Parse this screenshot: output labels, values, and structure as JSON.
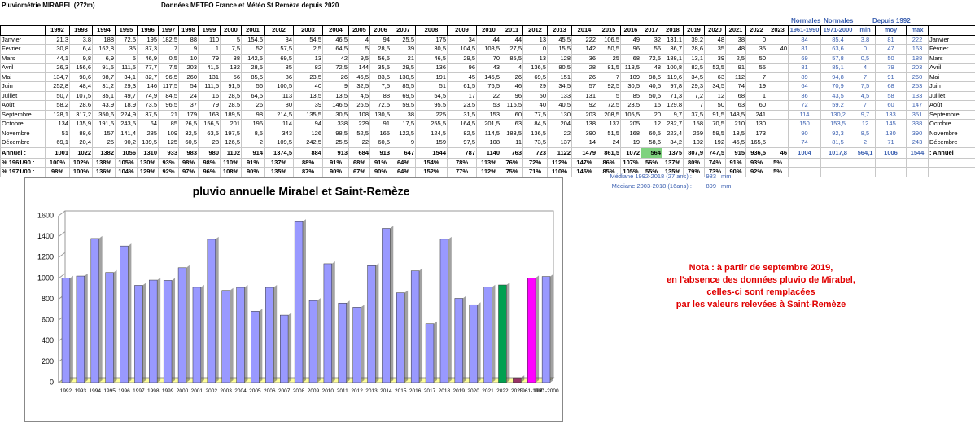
{
  "header": {
    "title": "Pluviométrie   MIRABEL (272m)",
    "source": "Données METEO France et Météo St Remèze depuis 2020"
  },
  "table": {
    "years": [
      "1992",
      "1993",
      "1994",
      "1995",
      "1996",
      "1997",
      "1998",
      "1999",
      "2000",
      "2001",
      "2002",
      "2003",
      "2004",
      "2005",
      "2006",
      "2007",
      "2008",
      "2009",
      "2010",
      "2011",
      "2012",
      "2013",
      "2014",
      "2015",
      "2016",
      "2017",
      "2018",
      "2019",
      "2020",
      "2021",
      "2022",
      "2023"
    ],
    "group_headers": [
      "Normales",
      "Normales",
      "Depuis 1992"
    ],
    "stat_headers": [
      "1961-1990",
      "1971-2000",
      "min",
      "moy",
      "max"
    ],
    "rows": [
      {
        "label": "Janvier",
        "values": [
          "21,3",
          "3,8",
          "188",
          "72,5",
          "195",
          "182,5",
          "88",
          "110",
          "5",
          "154,5",
          "34",
          "54,5",
          "46,5",
          "4",
          "94",
          "25,5",
          "175",
          "34",
          "44",
          "44",
          "13",
          "45,5",
          "222",
          "106,5",
          "49",
          "32",
          "131,1",
          "39,2",
          "48",
          "38",
          "0",
          null
        ],
        "stats": [
          "84",
          "85,4",
          "3,8",
          "81",
          "222"
        ],
        "tail": "Janvier"
      },
      {
        "label": "Février",
        "values": [
          "30,8",
          "6,4",
          "162,8",
          "35",
          "87,3",
          "7",
          "9",
          "1",
          "7,5",
          "52",
          "57,5",
          "2,5",
          "64,5",
          "5",
          "28,5",
          "39",
          "30,5",
          "104,5",
          "108,5",
          "27,5",
          "0",
          "15,5",
          "142",
          "50,5",
          "96",
          "56",
          "36,7",
          "28,6",
          "35",
          "48",
          "35",
          "40"
        ],
        "stats": [
          "81",
          "63,6",
          "0",
          "47",
          "163"
        ],
        "tail": "Février"
      },
      {
        "label": "Mars",
        "values": [
          "44,1",
          "9,8",
          "6,9",
          "5",
          "46,9",
          "0,5",
          "10",
          "79",
          "38",
          "142,5",
          "69,5",
          "13",
          "42",
          "9,5",
          "56,5",
          "21",
          "46,5",
          "29,5",
          "70",
          "85,5",
          "13",
          "128",
          "36",
          "25",
          "68",
          "72,5",
          "188,1",
          "13,1",
          "39",
          "2,5",
          "50",
          null
        ],
        "stats": [
          "69",
          "57,8",
          "0,5",
          "50",
          "188"
        ],
        "tail": "Mars"
      },
      {
        "label": "Avril",
        "values": [
          "26,3",
          "156,6",
          "91,5",
          "111,5",
          "77,7",
          "7,5",
          "203",
          "41,5",
          "132",
          "28,5",
          "35",
          "82",
          "72,5",
          "144",
          "35,5",
          "29,5",
          "136",
          "96",
          "43",
          "4",
          "136,5",
          "80,5",
          "28",
          "81,5",
          "113,5",
          "48",
          "100,8",
          "82,5",
          "52,5",
          "91",
          "55",
          null
        ],
        "stats": [
          "81",
          "85,1",
          "4",
          "79",
          "203"
        ],
        "tail": "Avril"
      },
      {
        "label": "Mai",
        "values": [
          "134,7",
          "98,6",
          "98,7",
          "34,1",
          "82,7",
          "96,5",
          "260",
          "131",
          "56",
          "85,5",
          "86",
          "23,5",
          "26",
          "46,5",
          "83,5",
          "130,5",
          "191",
          "45",
          "145,5",
          "26",
          "69,5",
          "151",
          "26",
          "7",
          "109",
          "98,5",
          "119,6",
          "34,5",
          "63",
          "112",
          "7",
          null
        ],
        "stats": [
          "89",
          "94,8",
          "7",
          "91",
          "260"
        ],
        "tail": "Mai"
      },
      {
        "label": "Juin",
        "values": [
          "252,8",
          "48,4",
          "31,2",
          "29,3",
          "146",
          "117,5",
          "54",
          "111,5",
          "91,5",
          "56",
          "100,5",
          "40",
          "9",
          "32,5",
          "7,5",
          "85,5",
          "51",
          "61,5",
          "76,5",
          "46",
          "29",
          "34,5",
          "57",
          "92,5",
          "30,5",
          "40,5",
          "97,8",
          "29,3",
          "34,5",
          "74",
          "19",
          null
        ],
        "stats": [
          "64",
          "70,9",
          "7,5",
          "68",
          "253"
        ],
        "tail": "Juin"
      },
      {
        "label": "Juillet",
        "values": [
          "50,7",
          "107,5",
          "35,1",
          "49,7",
          "74,9",
          "84,5",
          "24",
          "16",
          "28,5",
          "64,5",
          "113",
          "13,5",
          "13,5",
          "4,5",
          "88",
          "69,5",
          "54,5",
          "17",
          "22",
          "96",
          "50",
          "133",
          "131",
          "5",
          "85",
          "50,5",
          "71,3",
          "7,2",
          "12",
          "68",
          "1",
          null
        ],
        "stats": [
          "36",
          "43,5",
          "4,5",
          "58",
          "133"
        ],
        "tail": "Juillet"
      },
      {
        "label": "Août",
        "values": [
          "58,2",
          "28,6",
          "43,9",
          "18,9",
          "73,5",
          "96,5",
          "37",
          "79",
          "28,5",
          "26",
          "80",
          "39",
          "146,5",
          "26,5",
          "72,5",
          "59,5",
          "95,5",
          "23,5",
          "53",
          "116,5",
          "40",
          "40,5",
          "92",
          "72,5",
          "23,5",
          "15",
          "129,8",
          "7",
          "50",
          "63",
          "60",
          null
        ],
        "stats": [
          "72",
          "59,2",
          "7",
          "60",
          "147"
        ],
        "tail": "Août"
      },
      {
        "label": "Septembre",
        "values": [
          "128,1",
          "317,2",
          "350,6",
          "224,9",
          "37,5",
          "21",
          "179",
          "163",
          "189,5",
          "98",
          "214,5",
          "135,5",
          "30,5",
          "108",
          "130,5",
          "38",
          "225",
          "31,5",
          "153",
          "60",
          "77,5",
          "130",
          "203",
          "208,5",
          "105,5",
          "20",
          "9,7",
          "37,5",
          "91,5",
          "148,5",
          "241",
          null
        ],
        "stats": [
          "114",
          "130,2",
          "9,7",
          "133",
          "351"
        ],
        "tail": "Septembre"
      },
      {
        "label": "Octobre",
        "values": [
          "134",
          "135,9",
          "191,5",
          "243,5",
          "64",
          "85",
          "26,5",
          "156,5",
          "201",
          "196",
          "114",
          "94",
          "338",
          "229",
          "91",
          "17,5",
          "255,5",
          "164,5",
          "201,5",
          "63",
          "84,5",
          "204",
          "138",
          "137",
          "205",
          "12",
          "232,7",
          "158",
          "70,5",
          "210",
          "130",
          null
        ],
        "stats": [
          "150",
          "153,5",
          "12",
          "145",
          "338"
        ],
        "tail": "Octobre"
      },
      {
        "label": "Novembre",
        "values": [
          "51",
          "88,6",
          "157",
          "141,4",
          "285",
          "109",
          "32,5",
          "63,5",
          "197,5",
          "8,5",
          "343",
          "126",
          "98,5",
          "52,5",
          "165",
          "122,5",
          "124,5",
          "82,5",
          "114,5",
          "183,5",
          "136,5",
          "22",
          "390",
          "51,5",
          "168",
          "60,5",
          "223,4",
          "269",
          "59,5",
          "13,5",
          "173",
          null
        ],
        "stats": [
          "90",
          "92,3",
          "8,5",
          "130",
          "390"
        ],
        "tail": "Novembre"
      },
      {
        "label": "Décembre",
        "values": [
          "69,1",
          "20,4",
          "25",
          "90,2",
          "139,5",
          "125",
          "60,5",
          "28",
          "126,5",
          "2",
          "109,5",
          "242,5",
          "25,5",
          "22",
          "60,5",
          "9",
          "159",
          "97,5",
          "108",
          "11",
          "73,5",
          "137",
          "14",
          "24",
          "19",
          "58,6",
          "34,2",
          "102",
          "192",
          "46,5",
          "165,5",
          null
        ],
        "stats": [
          "74",
          "81,5",
          "2",
          "71",
          "243"
        ],
        "tail": "Décembre"
      },
      {
        "label": "Annuel :",
        "values": [
          "1001",
          "1022",
          "1382",
          "1056",
          "1310",
          "933",
          "983",
          "980",
          "1102",
          "914",
          "1374,5",
          "884",
          "913",
          "684",
          "913",
          "647",
          "1544",
          "787",
          "1140",
          "763",
          "723",
          "1122",
          "1479",
          "861,5",
          "1072",
          "564",
          "1375",
          "807,9",
          "747,5",
          "915",
          "936,5",
          "46"
        ],
        "stats": [
          "1004",
          "1017,8",
          "564,1",
          "1006",
          "1544"
        ],
        "tail": ": Annuel"
      },
      {
        "label": "% 1961/90 :",
        "values": [
          "100%",
          "102%",
          "138%",
          "105%",
          "130%",
          "93%",
          "98%",
          "98%",
          "110%",
          "91%",
          "137%",
          "88%",
          "91%",
          "68%",
          "91%",
          "64%",
          "154%",
          "78%",
          "113%",
          "76%",
          "72%",
          "112%",
          "147%",
          "86%",
          "107%",
          "56%",
          "137%",
          "80%",
          "74%",
          "91%",
          "93%",
          "5%"
        ]
      },
      {
        "label": "% 1971/00 :",
        "values": [
          "98%",
          "100%",
          "136%",
          "104%",
          "129%",
          "92%",
          "97%",
          "96%",
          "108%",
          "90%",
          "135%",
          "87%",
          "90%",
          "67%",
          "90%",
          "64%",
          "152%",
          "77%",
          "112%",
          "75%",
          "71%",
          "110%",
          "145%",
          "85%",
          "105%",
          "55%",
          "135%",
          "79%",
          "73%",
          "90%",
          "92%",
          "5%"
        ]
      }
    ]
  },
  "medians": [
    "Médiane 1992-2018 (27 ans) :",
    "983",
    "mm",
    "Médiane 2003-2018 (16ans) :",
    "899",
    "mm"
  ],
  "note": [
    "Nota : à partir de septembre 2019,",
    "en l'absence des données pluvio de Mirabel,",
    "celles-ci sont remplacées",
    "par les valeurs relevées à Saint-Remèze"
  ],
  "chart_data": {
    "type": "bar",
    "title": "pluvio annuelle Mirabel et Saint-Remèze",
    "categories": [
      "1992",
      "1993",
      "1994",
      "1995",
      "1996",
      "1997",
      "1998",
      "1999",
      "2000",
      "2001",
      "2002",
      "2003",
      "2004",
      "2005",
      "2006",
      "2007",
      "2008",
      "2009",
      "2010",
      "2011",
      "2012",
      "2013",
      "2014",
      "2015",
      "2016",
      "2017",
      "2018",
      "2019",
      "2020",
      "2021",
      "2022",
      "2023",
      "1961-1990",
      "1971-2000"
    ],
    "values": [
      1001,
      1022,
      1382,
      1056,
      1310,
      933,
      983,
      980,
      1102,
      914,
      1374.5,
      884,
      913,
      684,
      913,
      647,
      1544,
      787,
      1140,
      763,
      723,
      1122,
      1479,
      861.5,
      1072,
      564,
      1375,
      807.9,
      747.5,
      915,
      936.5,
      46,
      1004,
      1017.8
    ],
    "colors": [
      "#9999ff",
      "#9999ff",
      "#9999ff",
      "#9999ff",
      "#9999ff",
      "#9999ff",
      "#9999ff",
      "#9999ff",
      "#9999ff",
      "#9999ff",
      "#9999ff",
      "#9999ff",
      "#9999ff",
      "#9999ff",
      "#9999ff",
      "#9999ff",
      "#9999ff",
      "#9999ff",
      "#9999ff",
      "#9999ff",
      "#9999ff",
      "#9999ff",
      "#9999ff",
      "#9999ff",
      "#9999ff",
      "#9999ff",
      "#9999ff",
      "#9999ff",
      "#9999ff",
      "#9999ff",
      "#00a050",
      "#993366",
      "#ff00ff",
      "#9999ff"
    ],
    "ylim": [
      0,
      1600
    ],
    "yticks": [
      0,
      200,
      400,
      600,
      800,
      1000,
      1200,
      1400,
      1600
    ],
    "grid": true
  }
}
